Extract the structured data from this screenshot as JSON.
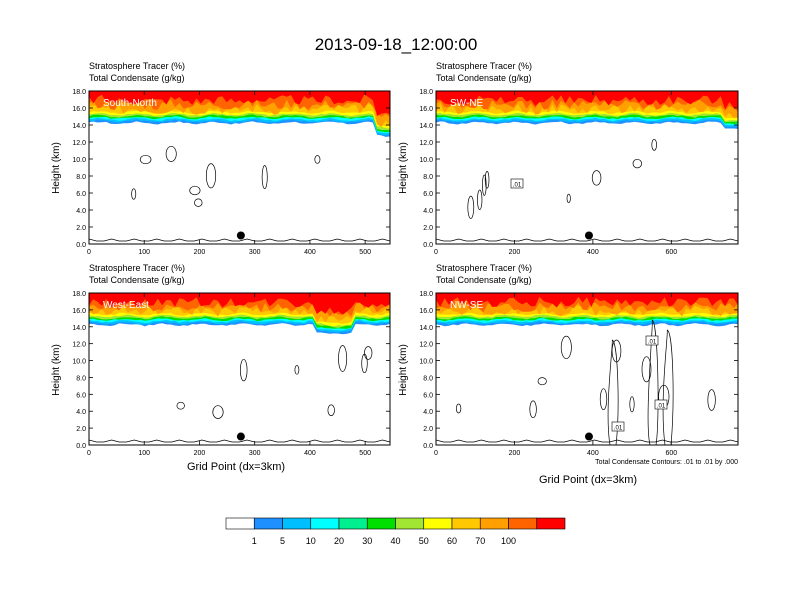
{
  "title": "2013-09-18_12:00:00",
  "panel_header": {
    "line1": "Stratosphere Tracer   (%)",
    "line2": "Total Condensate   (g/kg)"
  },
  "ylabel": "Height (km)",
  "xlabel": "Grid Point (dx=3km)",
  "contour_note": "Total Condensate Contours: .01 to .01 by .000",
  "colorbar": {
    "colors": [
      "#ffffff",
      "#1e90ff",
      "#00bfff",
      "#00ffff",
      "#00f090",
      "#00e000",
      "#a0e632",
      "#ffff00",
      "#ffc800",
      "#ffa000",
      "#ff6400",
      "#ff0000"
    ],
    "labels": [
      "1",
      "5",
      "10",
      "20",
      "30",
      "40",
      "50",
      "60",
      "70",
      "100"
    ]
  },
  "chart_data": [
    {
      "type": "heatmap",
      "name": "South-North",
      "ylabel": "Height (km)",
      "xlabel": "",
      "xlim": [
        0,
        545
      ],
      "ylim": [
        0,
        18
      ],
      "xticks": [
        0,
        100,
        200,
        300,
        400,
        500
      ],
      "yticks": [
        "0.0",
        "2.0",
        "4.0",
        "6.0",
        "8.0",
        "10.0",
        "12.0",
        "14.0",
        "16.0",
        "18.0"
      ],
      "marker": {
        "x": 275,
        "y": 1.0
      },
      "tracer_base_km": 14.6,
      "contour_label": ""
    },
    {
      "type": "heatmap",
      "name": "SW-NE",
      "ylabel": "",
      "xlabel": "",
      "xlim": [
        0,
        770
      ],
      "ylim": [
        0,
        18
      ],
      "xticks": [
        0,
        200,
        400,
        600
      ],
      "yticks": [
        "0.0",
        "2.0",
        "4.0",
        "6.0",
        "8.0",
        "10.0",
        "12.0",
        "14.0",
        "16.0",
        "18.0"
      ],
      "marker": {
        "x": 390,
        "y": 1.0
      },
      "tracer_base_km": 14.6,
      "contour_label": ".01"
    },
    {
      "type": "heatmap",
      "name": "West-East",
      "ylabel": "Height (km)",
      "xlabel": "Grid Point (dx=3km)",
      "xlim": [
        0,
        545
      ],
      "ylim": [
        0,
        18
      ],
      "xticks": [
        0,
        100,
        200,
        300,
        400,
        500
      ],
      "yticks": [
        "0.0",
        "2.0",
        "4.0",
        "6.0",
        "8.0",
        "10.0",
        "12.0",
        "14.0",
        "16.0",
        "18.0"
      ],
      "marker": {
        "x": 275,
        "y": 1.0
      },
      "tracer_base_km": 14.6,
      "contour_label": ""
    },
    {
      "type": "heatmap",
      "name": "NW-SE",
      "ylabel": "",
      "xlabel": "Grid Point (dx=3km)",
      "xlim": [
        0,
        770
      ],
      "ylim": [
        0,
        18
      ],
      "xticks": [
        0,
        200,
        400,
        600
      ],
      "yticks": [
        "0.0",
        "2.0",
        "4.0",
        "6.0",
        "8.0",
        "10.0",
        "12.0",
        "14.0",
        "16.0",
        "18.0"
      ],
      "marker": {
        "x": 390,
        "y": 1.0
      },
      "tracer_base_km": 14.6,
      "contour_label": ".01"
    }
  ]
}
